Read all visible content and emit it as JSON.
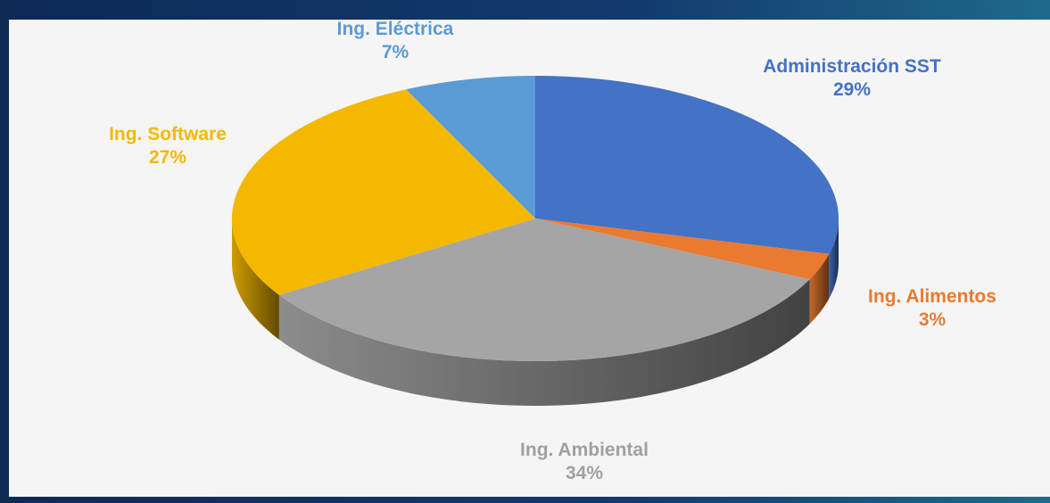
{
  "chart_data": {
    "type": "pie3d",
    "categories": [
      "Administración SST",
      "Ing. Alimentos",
      "Ing. Ambiental",
      "Ing. Software",
      "Ing. Eléctrica"
    ],
    "values": [
      29,
      3,
      34,
      27,
      7
    ],
    "value_labels": [
      "29%",
      "3%",
      "34%",
      "27%",
      "7%"
    ],
    "colors": [
      "#4472c4",
      "#e97a30",
      "#a5a5a5",
      "#f4b800",
      "#5b9bd5"
    ]
  }
}
